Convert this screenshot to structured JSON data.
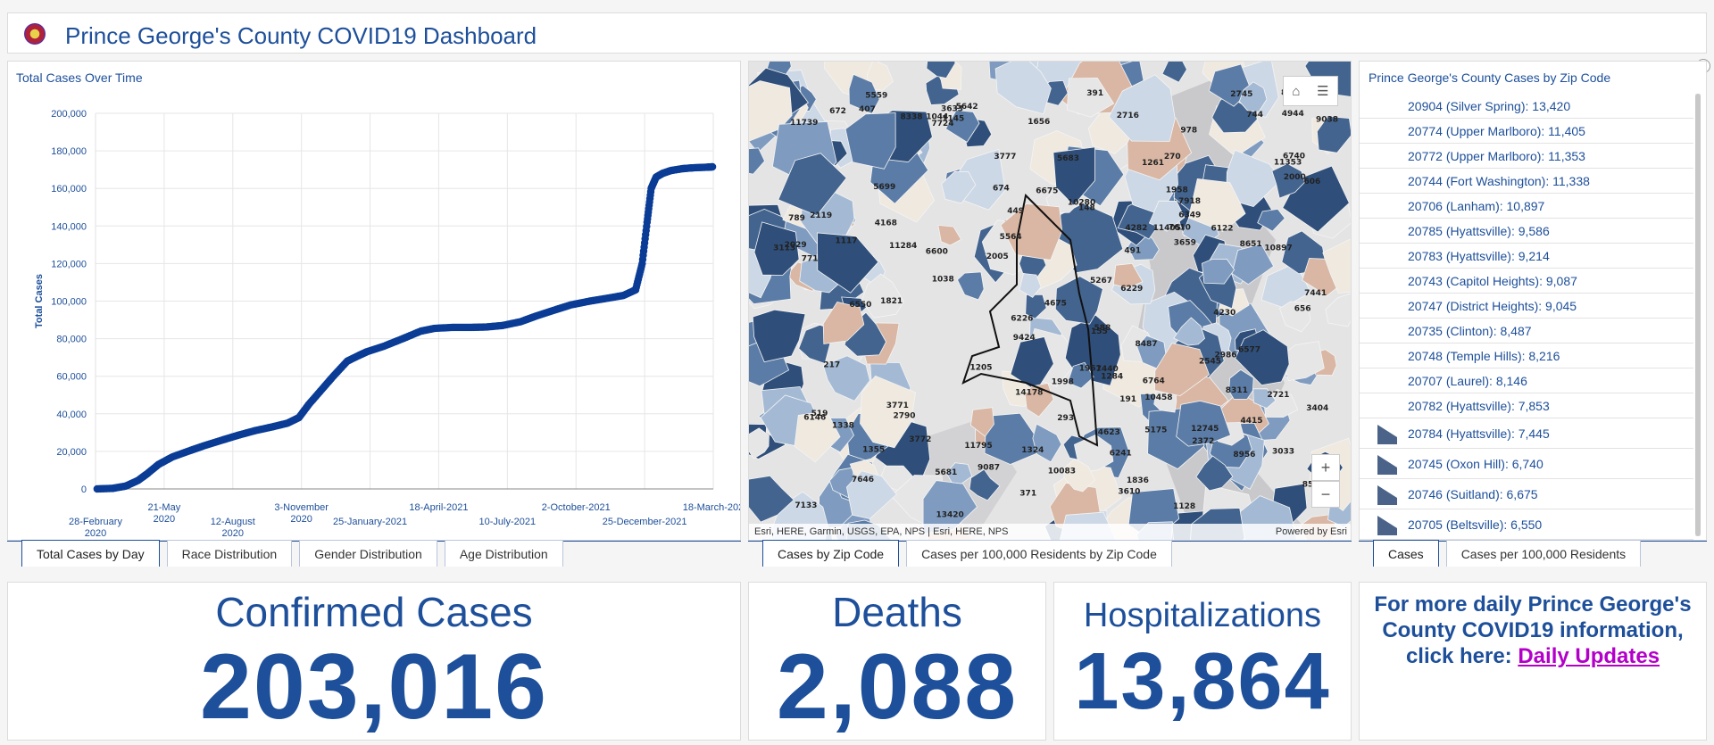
{
  "header": {
    "title": "Prince George's County COVID19 Dashboard"
  },
  "chart": {
    "title": "Total Cases Over Time",
    "tabs": [
      "Total Cases by Day",
      "Race Distribution",
      "Gender Distribution",
      "Age Distribution"
    ]
  },
  "chart_data": {
    "type": "scatter",
    "title": "Total Cases Over Time",
    "ylabel": "Total Cases",
    "xlabel": "",
    "ylim": [
      0,
      200000
    ],
    "yticks": [
      "0",
      "20,000",
      "40,000",
      "60,000",
      "80,000",
      "100,000",
      "120,000",
      "140,000",
      "160,000",
      "180,000",
      "200,000"
    ],
    "xticks": [
      {
        "line1": "28-February",
        "line2": "2020"
      },
      {
        "line1": "21-May",
        "line2": "2020"
      },
      {
        "line1": "12-August",
        "line2": "2020"
      },
      {
        "line1": "3-November",
        "line2": "2020"
      },
      {
        "line1": "25-January-2021",
        "line2": ""
      },
      {
        "line1": "18-April-2021",
        "line2": ""
      },
      {
        "line1": "10-July-2021",
        "line2": ""
      },
      {
        "line1": "2-October-2021",
        "line2": ""
      },
      {
        "line1": "25-December-2021",
        "line2": ""
      },
      {
        "line1": "18-March-202",
        "line2": ""
      }
    ],
    "xlim": [
      "2020-02-28",
      "2022-03-25"
    ],
    "x": [
      "2020-03-01",
      "2020-03-20",
      "2020-04-05",
      "2020-04-20",
      "2020-05-01",
      "2020-05-15",
      "2020-06-01",
      "2020-06-20",
      "2020-07-10",
      "2020-08-01",
      "2020-08-20",
      "2020-09-10",
      "2020-10-01",
      "2020-10-20",
      "2020-11-03",
      "2020-11-15",
      "2020-12-01",
      "2020-12-15",
      "2021-01-01",
      "2021-01-15",
      "2021-01-25",
      "2021-02-15",
      "2021-03-10",
      "2021-04-01",
      "2021-04-18",
      "2021-05-10",
      "2021-06-01",
      "2021-06-20",
      "2021-07-10",
      "2021-08-01",
      "2021-08-20",
      "2021-09-10",
      "2021-10-02",
      "2021-10-25",
      "2021-11-15",
      "2021-12-05",
      "2021-12-20",
      "2021-12-28",
      "2022-01-03",
      "2022-01-08",
      "2022-01-14",
      "2022-01-22",
      "2022-02-01",
      "2022-02-15",
      "2022-03-01",
      "2022-03-18",
      "2022-03-24"
    ],
    "values": [
      0,
      300,
      1500,
      4500,
      8000,
      13000,
      17000,
      20000,
      23000,
      26000,
      28500,
      31000,
      33000,
      35000,
      38000,
      45000,
      53000,
      60000,
      68000,
      71000,
      73000,
      76000,
      80000,
      84000,
      85500,
      86000,
      86000,
      86200,
      87000,
      89000,
      92000,
      95000,
      98000,
      100000,
      101500,
      103000,
      106000,
      120000,
      142000,
      160000,
      166000,
      168000,
      169500,
      170500,
      171000,
      171300,
      171500
    ],
    "color": "#0a3c96"
  },
  "map": {
    "tabs": [
      "Cases by Zip Code",
      "Cases per 100,000 Residents by Zip Code"
    ],
    "attribution": "Esri, HERE, Garmin, USGS, EPA, NPS | Esri, HERE, NPS",
    "powered_by": "Powered by Esri",
    "zoom_in": "+",
    "zoom_out": "−",
    "labels": [
      "1836",
      "7724",
      "2790",
      "4168",
      "6122",
      "6241",
      "656",
      "1038",
      "9424",
      "3772",
      "1338",
      "789",
      "6226",
      "7440",
      "3659",
      "2745",
      "771",
      "744",
      "2545",
      "8651",
      "12745",
      "1284",
      "5681",
      "2372",
      "6229",
      "7918",
      "1821",
      "11284",
      "10083",
      "3777",
      "10458",
      "8216",
      "270",
      "11795",
      "5642",
      "1324",
      "391",
      "2119",
      "7441",
      "6764",
      "1656",
      "5267",
      "9038",
      "4415",
      "2716",
      "6577",
      "1951",
      "14178",
      "588",
      "4944",
      "1205",
      "10280",
      "6600",
      "1958",
      "11739",
      "8512",
      "8956",
      "5564",
      "13420",
      "6146",
      "3113",
      "3610",
      "7610",
      "6550",
      "1044",
      "7646",
      "407",
      "4623",
      "5175",
      "2005",
      "10897",
      "4282",
      "1355",
      "5683",
      "9087",
      "8311",
      "4230",
      "3771",
      "11405",
      "519",
      "6675",
      "672",
      "1261",
      "293",
      "674",
      "6740",
      "8487",
      "11353",
      "5559",
      "8338",
      "606",
      "978",
      "155",
      "2721",
      "3404",
      "2029",
      "7133",
      "5699",
      "3033",
      "6349",
      "1128",
      "148",
      "1145",
      "2000",
      "3633",
      "217",
      "1117",
      "4675",
      "449",
      "191",
      "371",
      "491",
      "2986",
      "1998"
    ]
  },
  "zipcodes": {
    "title": "Prince George's County Cases by Zip Code",
    "items": [
      "20904 (Silver Spring): 13,420",
      "20774 (Upper Marlboro): 11,405",
      "20772 (Upper Marlboro): 11,353",
      "20744 (Fort Washington): 11,338",
      "20706 (Lanham): 10,897",
      "20785 (Hyattsville): 9,586",
      "20783 (Hyattsville): 9,214",
      "20743 (Capitol Heights): 9,087",
      "20747 (District Heights): 9,045",
      "20735 (Clinton): 8,487",
      "20748 (Temple Hills): 8,216",
      "20707 (Laurel): 8,146",
      "20782 (Hyattsville): 7,853",
      "20784 (Hyattsville): 7,445",
      "20745 (Oxon Hill): 6,740",
      "20746 (Suitland): 6,675",
      "20705 (Beltsville): 6,550"
    ],
    "tabs": [
      "Cases",
      "Cases per 100,000 Residents"
    ]
  },
  "stats": {
    "confirmed": {
      "label": "Confirmed Cases",
      "value": "203,016"
    },
    "deaths": {
      "label": "Deaths",
      "value": "2,088"
    },
    "hospitalizations": {
      "label": "Hospitalizations",
      "value": "13,864"
    }
  },
  "info": {
    "line1": "For more daily Prince George's",
    "line2": "County COVID19 information,",
    "line3": "click here:",
    "link": "Daily Updates"
  }
}
